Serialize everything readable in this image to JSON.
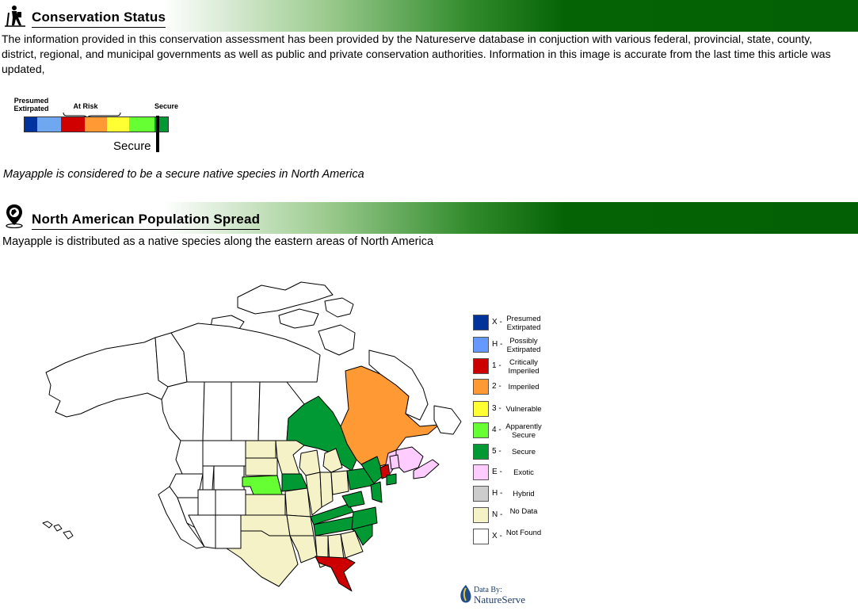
{
  "conservation": {
    "title": "Conservation Status",
    "icon": "hiker-icon",
    "intro": "The information provided in this conservation assessment has been provided by the Natureserve database in conjuction with various federal, provincial, state, county, district, regional, and municipal governments as well as public and private conservation authorities. Information in this image is accurate from the last time this article was updated,",
    "scale": {
      "label_extirpated": "Presumed Extirpated",
      "label_at_risk": "At Risk",
      "label_secure": "Secure",
      "marker_label": "Secure",
      "colors": [
        "#0033a0",
        "#6fa8f0",
        "#d00000",
        "#ff9933",
        "#ffff33",
        "#66ff33",
        "#009933"
      ]
    },
    "statement": "Mayapple is considered to be a secure native species in North America"
  },
  "population": {
    "title": "North American Population Spread",
    "icon": "globe-pin-icon",
    "statement": "Mayapple is distributed as a native species along the eastern areas of North America"
  },
  "legend": [
    {
      "code": "X -",
      "label": "Presumed Extirpated",
      "color": "#003399"
    },
    {
      "code": "H -",
      "label": "Possibly Extirpated",
      "color": "#6699ff"
    },
    {
      "code": "1 -",
      "label": "Critically Imperiled",
      "color": "#cc0000"
    },
    {
      "code": "2 -",
      "label": "Imperiled",
      "color": "#ff9933"
    },
    {
      "code": "3 -",
      "label": "Vulnerable",
      "color": "#ffff33"
    },
    {
      "code": "4 -",
      "label": "Apparently Secure",
      "color": "#66ff33"
    },
    {
      "code": "5 -",
      "label": "Secure",
      "color": "#009933"
    },
    {
      "code": "E -",
      "label": "Exotic",
      "color": "#ffccff"
    },
    {
      "code": "H -",
      "label": "Hybrid",
      "color": "#cccccc"
    },
    {
      "code": "N -",
      "label": "No Data",
      "color": "#f5f2c8"
    },
    {
      "code": "X -",
      "label": "Not Found",
      "color": "#ffffff"
    }
  ],
  "credit": {
    "prefix": "Data By:",
    "name": "NatureServe"
  }
}
